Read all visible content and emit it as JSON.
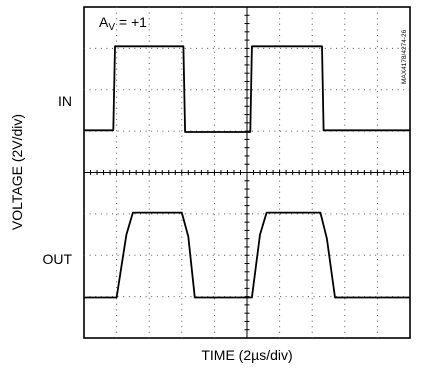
{
  "chart_data": {
    "type": "line",
    "annotation": {
      "gain_base": "A",
      "gain_sub": "V",
      "gain_rest": " = +1"
    },
    "xlabel": "TIME (2µs/div)",
    "ylabel": "VOLTAGE (2V/div)",
    "watermark": "MAX4178/4274-26",
    "grid": true,
    "divisions": {
      "x": 10,
      "y": 8
    },
    "series": [
      {
        "name": "IN",
        "x": [
          0,
          0.9,
          0.95,
          3.05,
          3.1,
          5.1,
          5.15,
          7.3,
          7.35,
          10
        ],
        "y": [
          5.02,
          5.02,
          7.05,
          7.05,
          4.98,
          4.98,
          7.05,
          7.05,
          5.02,
          5.02
        ]
      },
      {
        "name": "OUT",
        "x": [
          0,
          1.0,
          1.3,
          1.5,
          3.0,
          3.2,
          3.4,
          5.15,
          5.4,
          5.6,
          7.25,
          7.45,
          7.7,
          10
        ],
        "y": [
          0.98,
          0.98,
          2.5,
          3.03,
          3.03,
          2.45,
          0.98,
          0.98,
          2.5,
          3.03,
          3.03,
          2.4,
          0.98,
          0.98
        ]
      }
    ]
  }
}
